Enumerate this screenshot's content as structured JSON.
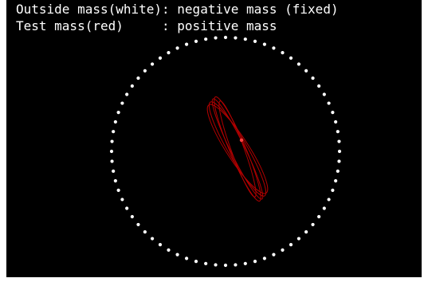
{
  "legend": {
    "line1": "Outside mass(white): negative mass (fixed)",
    "line2": "Test mass(red)     : positive mass"
  },
  "simulation": {
    "ring_mass_count": 72,
    "colors": {
      "background": "#000000",
      "ring_mass": "#ffffff",
      "test_mass": "#ff4040",
      "trajectory": "#b00000",
      "text": "#ffffff"
    }
  }
}
